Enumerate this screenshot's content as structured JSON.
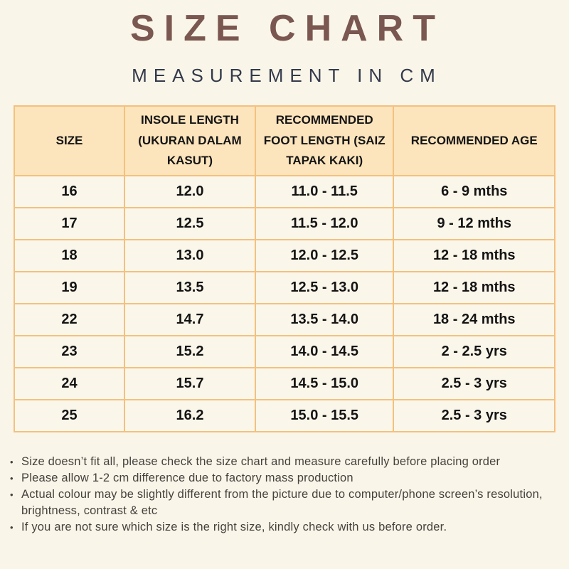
{
  "header": {
    "title": "SIZE CHART",
    "subtitle": "MEASUREMENT IN CM"
  },
  "colors": {
    "page_background": "#faf5e9",
    "title_text": "#7a5750",
    "subtitle_text": "#333a4b",
    "table_header_background": "#fce4bc",
    "table_border": "#f3c17e",
    "table_cell_background": "#fbf6ea",
    "table_text": "#141414",
    "notes_text": "#45413d"
  },
  "table": {
    "columns": [
      "SIZE",
      "INSOLE LENGTH (UKURAN DALAM KASUT)",
      "RECOMMENDED FOOT LENGTH (SAIZ TAPAK KAKI)",
      "RECOMMENDED AGE"
    ],
    "rows": [
      {
        "size": "16",
        "insole": "12.0",
        "foot": "11.0 - 11.5",
        "age": "6 - 9 mths"
      },
      {
        "size": "17",
        "insole": "12.5",
        "foot": "11.5 - 12.0",
        "age": "9 - 12 mths"
      },
      {
        "size": "18",
        "insole": "13.0",
        "foot": "12.0 - 12.5",
        "age": "12 - 18 mths"
      },
      {
        "size": "19",
        "insole": "13.5",
        "foot": "12.5 - 13.0",
        "age": "12 - 18 mths"
      },
      {
        "size": "22",
        "insole": "14.7",
        "foot": "13.5 - 14.0",
        "age": "18 - 24 mths"
      },
      {
        "size": "23",
        "insole": "15.2",
        "foot": "14.0 - 14.5",
        "age": "2 - 2.5 yrs"
      },
      {
        "size": "24",
        "insole": "15.7",
        "foot": "14.5 - 15.0",
        "age": "2.5 - 3 yrs"
      },
      {
        "size": "25",
        "insole": "16.2",
        "foot": "15.0 - 15.5",
        "age": "2.5 - 3 yrs"
      }
    ]
  },
  "notes": {
    "bullet": "•",
    "items": [
      "Size doesn’t fit all, please check the size chart and measure carefully before placing order",
      "Please allow 1-2 cm difference due to factory mass production",
      "Actual colour may be slightly different from the picture due to computer/phone screen’s resolution, brightness, contrast & etc",
      "If you are not sure which size is the right size, kindly check with us before order."
    ]
  }
}
